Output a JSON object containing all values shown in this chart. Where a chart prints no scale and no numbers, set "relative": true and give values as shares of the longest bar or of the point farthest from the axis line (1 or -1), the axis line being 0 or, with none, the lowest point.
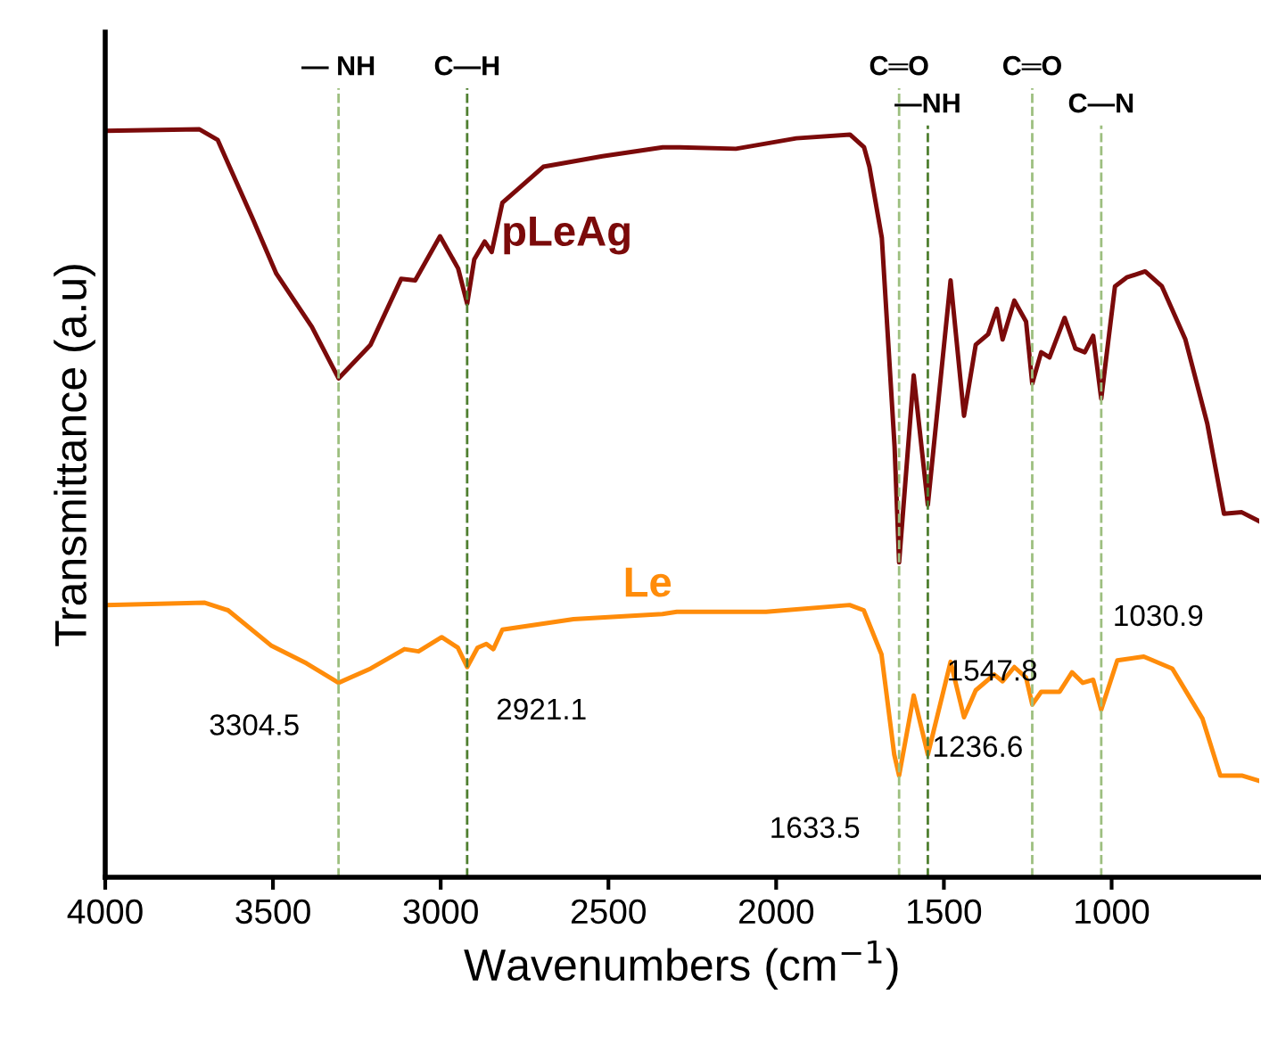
{
  "chart_data": {
    "type": "line",
    "relative": true,
    "xlabel": "Wavenumbers (cm$^{−1}$)",
    "ylabel": "Transmittance (a.u)",
    "xlim": [
      4000,
      560
    ],
    "xticks": [
      4000,
      3500,
      3000,
      2500,
      2000,
      1500,
      1000
    ],
    "grid": false,
    "legend": false,
    "line_style": "solid",
    "marker": "none",
    "series": [
      {
        "name": "pLeAg",
        "color": "#7b0a0a",
        "x": [
          4000,
          3719,
          3665,
          3559,
          3490,
          3384,
          3304.5,
          3209,
          3118,
          3076,
          3002,
          2948,
          2921.1,
          2900,
          2869,
          2848,
          2816,
          2694,
          2518,
          2338,
          2295,
          2120,
          1940,
          1780,
          1738,
          1722,
          1685,
          1647,
          1633.5,
          1590,
          1547.8,
          1480,
          1440,
          1405,
          1368,
          1342,
          1325,
          1290,
          1255,
          1236.6,
          1210,
          1185,
          1140,
          1108,
          1080,
          1055,
          1030.9,
          990,
          955,
          900,
          850,
          780,
          715,
          665,
          612,
          560
        ],
        "values": [
          0.998,
          1.0,
          0.986,
          0.879,
          0.807,
          0.736,
          0.667,
          0.712,
          0.8,
          0.798,
          0.857,
          0.814,
          0.767,
          0.826,
          0.85,
          0.836,
          0.902,
          0.95,
          0.964,
          0.976,
          0.976,
          0.974,
          0.988,
          0.993,
          0.976,
          0.95,
          0.855,
          0.576,
          0.421,
          0.671,
          0.498,
          0.798,
          0.617,
          0.712,
          0.726,
          0.76,
          0.719,
          0.771,
          0.743,
          0.66,
          0.702,
          0.695,
          0.748,
          0.707,
          0.702,
          0.724,
          0.64,
          0.79,
          0.802,
          0.81,
          0.79,
          0.719,
          0.607,
          0.486,
          0.488,
          0.476
        ]
      },
      {
        "name": "Le",
        "color": "#ff8c0a",
        "x": [
          4000,
          3703,
          3634,
          3506,
          3400,
          3304.5,
          3209,
          3108,
          3066,
          2997,
          2949,
          2921.1,
          2890,
          2864,
          2843,
          2816,
          2604,
          2339,
          2296,
          2030,
          1781,
          1739,
          1686,
          1648,
          1633.5,
          1590,
          1547.8,
          1480,
          1440,
          1405,
          1350,
          1325,
          1290,
          1255,
          1236.6,
          1210,
          1155,
          1118,
          1086,
          1055,
          1030.9,
          983,
          904,
          819,
          729,
          676,
          612,
          560
        ],
        "values": [
          0.364,
          0.367,
          0.357,
          0.31,
          0.286,
          0.26,
          0.279,
          0.305,
          0.302,
          0.321,
          0.307,
          0.281,
          0.307,
          0.312,
          0.305,
          0.331,
          0.345,
          0.352,
          0.355,
          0.355,
          0.364,
          0.357,
          0.298,
          0.164,
          0.136,
          0.243,
          0.164,
          0.288,
          0.214,
          0.25,
          0.271,
          0.262,
          0.281,
          0.267,
          0.231,
          0.248,
          0.248,
          0.274,
          0.26,
          0.264,
          0.224,
          0.29,
          0.295,
          0.279,
          0.212,
          0.136,
          0.136,
          0.129
        ]
      }
    ],
    "ref_lines": [
      {
        "axis": "x",
        "value": 3304.5,
        "label": "— NH",
        "color": "#9dbf7f",
        "line_style": "dashed"
      },
      {
        "axis": "x",
        "value": 2921.1,
        "label": "C—H",
        "color": "#4f7f30",
        "line_style": "dashed"
      },
      {
        "axis": "x",
        "value": 1633.5,
        "label": "C═O",
        "color": "#9dbf7f",
        "line_style": "dashed"
      },
      {
        "axis": "x",
        "value": 1547.8,
        "label": "—NH",
        "color": "#4f7f30",
        "line_style": "dashed"
      },
      {
        "axis": "x",
        "value": 1236.6,
        "label": "C═O",
        "color": "#9dbf7f",
        "line_style": "dashed"
      },
      {
        "axis": "x",
        "value": 1030.9,
        "label": "C—N",
        "color": "#9dbf7f",
        "line_style": "dashed"
      }
    ],
    "annotations": [
      {
        "text": "3304.5",
        "x": 3304.5,
        "y": 0.26
      },
      {
        "text": "2921.1",
        "x": 2921.1,
        "y": 0.281
      },
      {
        "text": "1633.5",
        "x": 1633.5,
        "y": 0.136
      },
      {
        "text": "1547.8",
        "x": 1547.8,
        "y": 0.164
      },
      {
        "text": "1236.6",
        "x": 1236.6,
        "y": 0.231
      },
      {
        "text": "1030.9",
        "x": 1030.9,
        "y": 0.224
      }
    ]
  }
}
